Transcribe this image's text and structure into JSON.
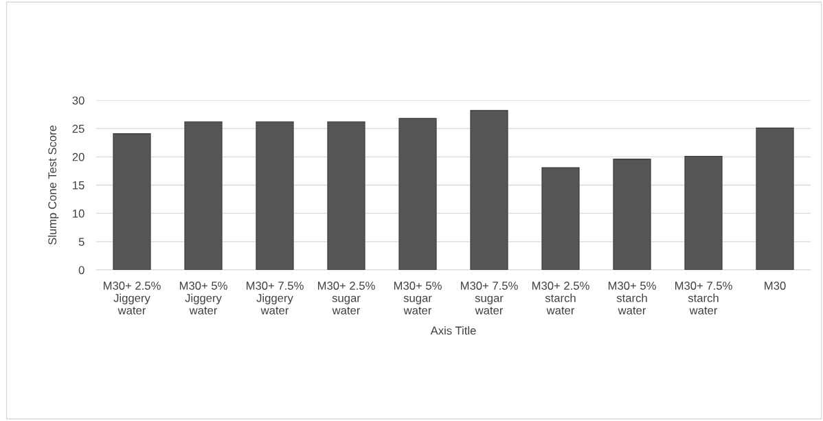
{
  "chart_data": {
    "type": "bar",
    "ylabel": "Slump Cone Test Score",
    "xlabel": "Axis Title",
    "categories": [
      "M30+ 2.5% Jiggery water",
      "M30+ 5% Jiggery water",
      "M30+ 7.5% Jiggery water",
      "M30+ 2.5% sugar water",
      "M30+ 5% sugar water",
      "M30+ 7.5% sugar water",
      "M30+ 2.5% starch water",
      "M30+ 5% starch water",
      "M30+ 7.5% starch water",
      "M30"
    ],
    "values": [
      24.1,
      26.2,
      26.2,
      26.2,
      26.8,
      28.2,
      18.1,
      19.6,
      20.1,
      25.1
    ],
    "color": "#555555",
    "ylim": [
      0,
      30
    ],
    "yticks": [
      0,
      5,
      10,
      15,
      20,
      25,
      30
    ],
    "grid": "y",
    "legend": false
  }
}
